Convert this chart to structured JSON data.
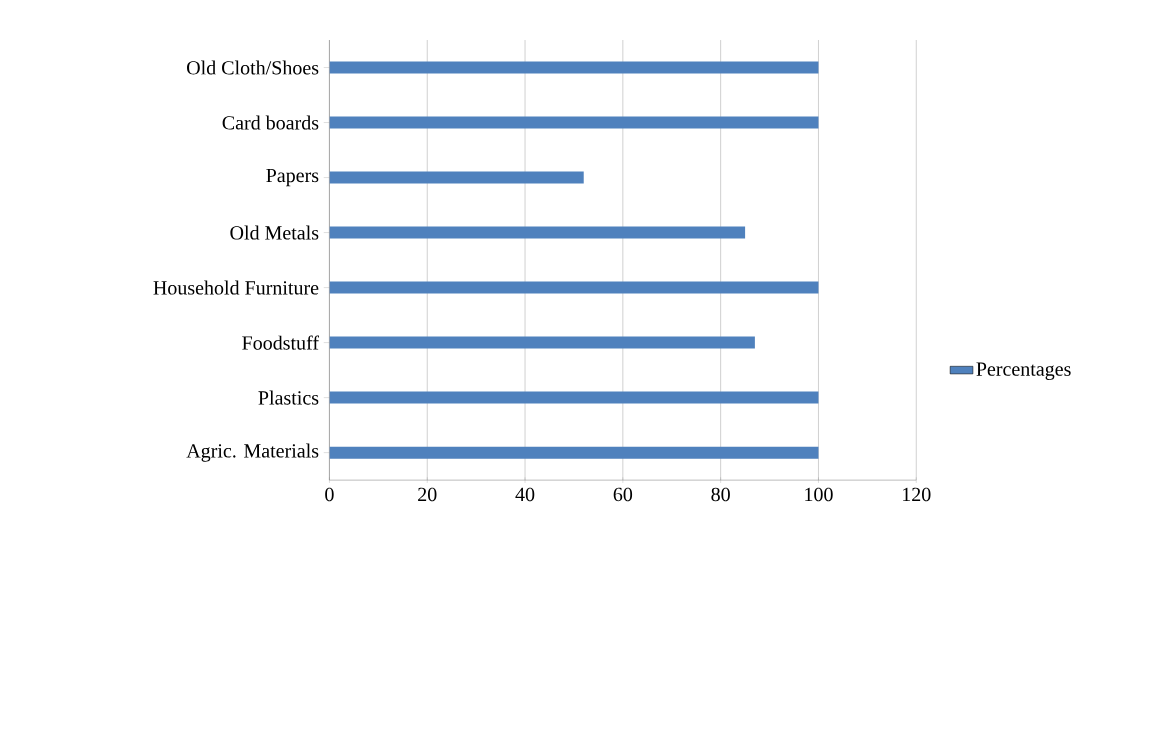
{
  "chart_data": {
    "type": "bar",
    "orientation": "horizontal",
    "categories": [
      "Old Cloth/Shoes",
      "Card boards",
      "Papers",
      "Old Metals",
      "Household Furniture",
      "Foodstuff",
      "Plastics",
      "Agric. Materials"
    ],
    "series": [
      {
        "name": "Percentages",
        "color": "#4f81bd",
        "values": [
          100,
          100,
          52,
          85,
          100,
          87,
          100,
          100
        ]
      }
    ],
    "xlim": [
      0,
      120
    ],
    "xticks": [
      0,
      20,
      40,
      60,
      80,
      100,
      120
    ],
    "grid": "x",
    "legend": "right"
  }
}
